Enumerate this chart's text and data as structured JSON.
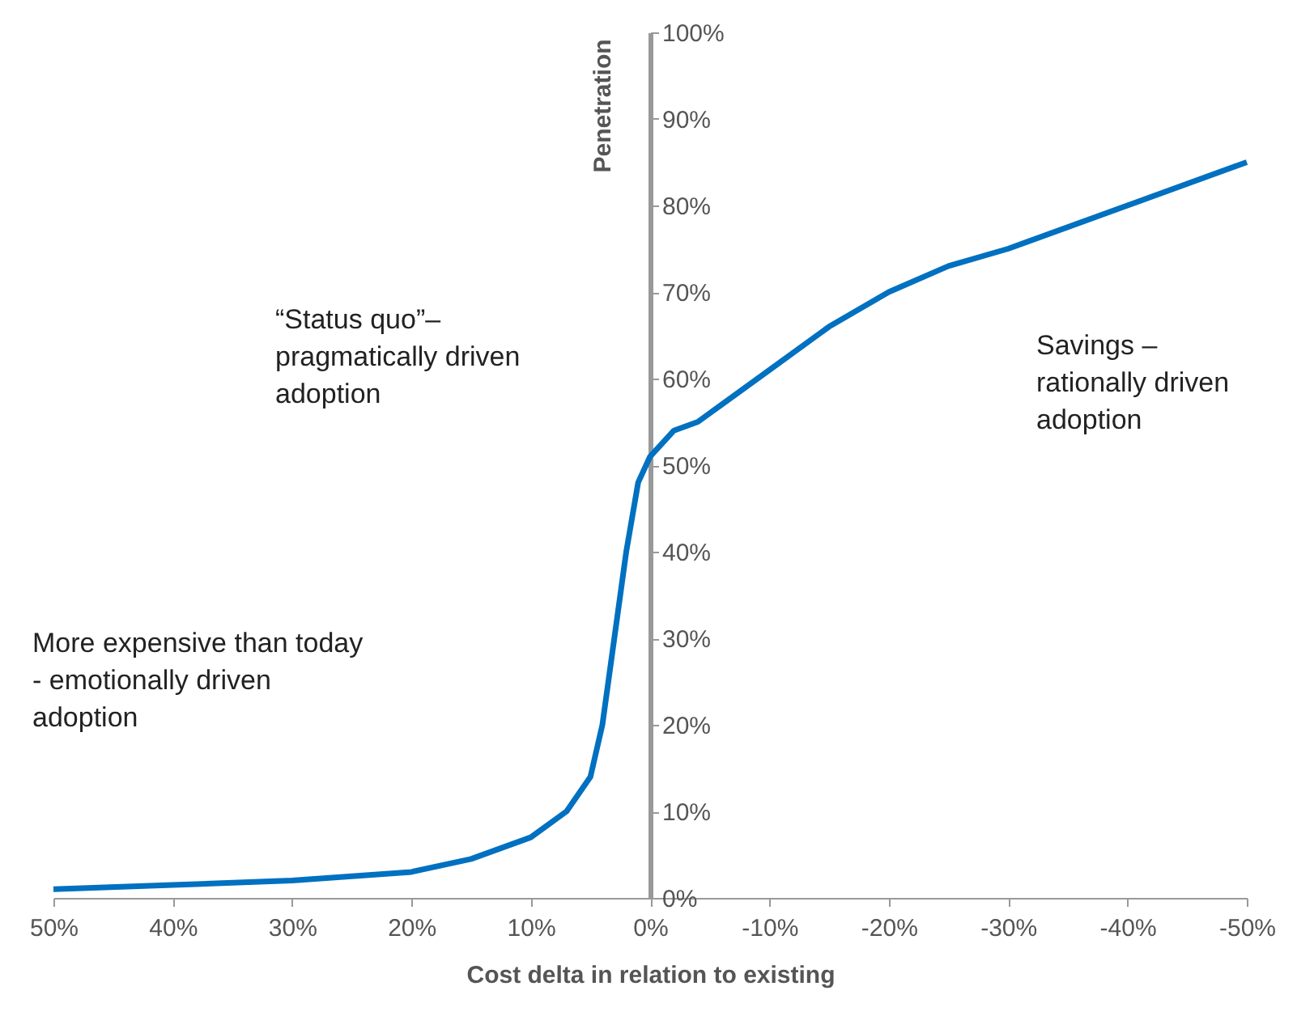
{
  "chart_data": {
    "type": "line",
    "xlabel": "Cost delta in relation to existing",
    "ylabel": "Penetration",
    "xlim": [
      50,
      -50
    ],
    "ylim": [
      0,
      100
    ],
    "xticks": [
      {
        "value": 50,
        "label": "50%"
      },
      {
        "value": 40,
        "label": "40%"
      },
      {
        "value": 30,
        "label": "30%"
      },
      {
        "value": 20,
        "label": "20%"
      },
      {
        "value": 10,
        "label": "10%"
      },
      {
        "value": 0,
        "label": "0%"
      },
      {
        "value": -10,
        "label": "-10%"
      },
      {
        "value": -20,
        "label": "-20%"
      },
      {
        "value": -30,
        "label": "-30%"
      },
      {
        "value": -40,
        "label": "-40%"
      },
      {
        "value": -50,
        "label": "-50%"
      }
    ],
    "yticks": [
      {
        "value": 0,
        "label": "0%"
      },
      {
        "value": 10,
        "label": "10%"
      },
      {
        "value": 20,
        "label": "20%"
      },
      {
        "value": 30,
        "label": "30%"
      },
      {
        "value": 40,
        "label": "40%"
      },
      {
        "value": 50,
        "label": "50%"
      },
      {
        "value": 60,
        "label": "60%"
      },
      {
        "value": 70,
        "label": "70%"
      },
      {
        "value": 80,
        "label": "80%"
      },
      {
        "value": 90,
        "label": "90%"
      },
      {
        "value": 100,
        "label": "100%"
      }
    ],
    "x": [
      50,
      40,
      30,
      20,
      15,
      10,
      7,
      5,
      4,
      3,
      2,
      1,
      0,
      -2,
      -4,
      -6,
      -10,
      -15,
      -20,
      -25,
      -30,
      -40,
      -50
    ],
    "series": [
      {
        "color": "#0070c0",
        "values": [
          1,
          1.5,
          2,
          3,
          4.5,
          7,
          10,
          14,
          20,
          30,
          40,
          48,
          51,
          54,
          55,
          57,
          61,
          66,
          70,
          73,
          75,
          80,
          85
        ]
      }
    ],
    "grid": false,
    "legend": false,
    "marker": "none",
    "line_style": "solid",
    "annotations": [
      "More expensive than today\n- emotionally driven\nadoption",
      "“Status  quo”–\npragmatically driven\nadoption",
      "Savings –\nrationally driven\nadoption"
    ]
  }
}
